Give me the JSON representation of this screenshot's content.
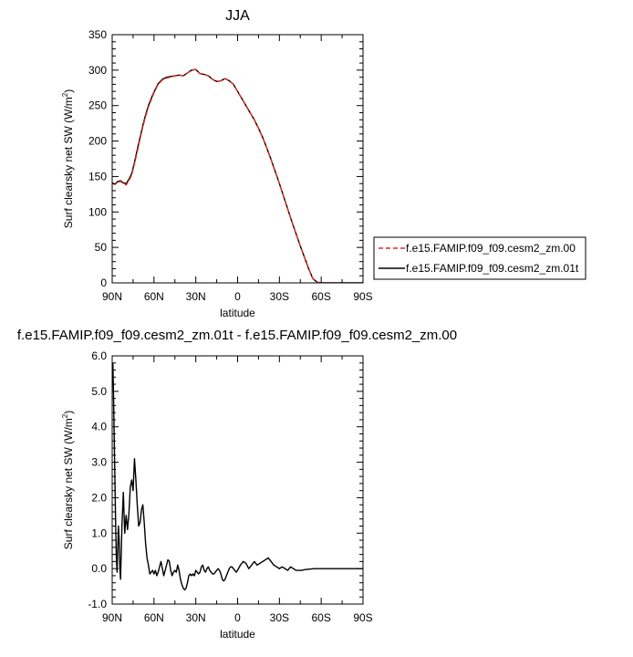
{
  "chart_data": [
    {
      "type": "line",
      "title": "JJA",
      "xlabel": "latitude",
      "ylabel": "Surf clearsky net SW (W/m",
      "ylabel_sup": "2",
      "ylabel_close": ")",
      "xlim": [
        90,
        -90
      ],
      "ylim": [
        0,
        350
      ],
      "xticks": [
        90,
        60,
        30,
        0,
        -30,
        -60,
        -90
      ],
      "xtick_labels": [
        "90N",
        "60N",
        "30N",
        "0",
        "30S",
        "60S",
        "90S"
      ],
      "yticks": [
        0,
        50,
        100,
        150,
        200,
        250,
        300,
        350
      ],
      "ytick_labels": [
        "0",
        "50",
        "100",
        "150",
        "200",
        "250",
        "300",
        "350"
      ],
      "legend_position": "right",
      "series": [
        {
          "name": "f.e15.FAMIP.f09_f09.cesm2_zm.00",
          "color": "#e8281e",
          "style": "dashed",
          "x": [
            90,
            88,
            86,
            84,
            82,
            80,
            78,
            76,
            74,
            72,
            70,
            68,
            66,
            64,
            62,
            60,
            57,
            54,
            51,
            48,
            45,
            42,
            39,
            36,
            33,
            30,
            27,
            24,
            21,
            18,
            15,
            12,
            9,
            6,
            3,
            0,
            -3,
            -6,
            -9,
            -12,
            -15,
            -18,
            -21,
            -24,
            -27,
            -30,
            -33,
            -36,
            -39,
            -42,
            -45,
            -48,
            -51,
            -54,
            -57,
            -60,
            -62,
            -64,
            -66,
            -68,
            -70,
            -75,
            -80,
            -85,
            -90
          ],
          "y": [
            140,
            139,
            142,
            143,
            140,
            138,
            144,
            152,
            168,
            185,
            203,
            220,
            235,
            248,
            258,
            268,
            280,
            286,
            289,
            290,
            292,
            293,
            292,
            296,
            300,
            301,
            295,
            294,
            292,
            287,
            284,
            285,
            288,
            285,
            280,
            270,
            260,
            250,
            240,
            230,
            218,
            205,
            190,
            174,
            157,
            140,
            122,
            104,
            86,
            69,
            52,
            36,
            20,
            6,
            1,
            0,
            0,
            0,
            0,
            0,
            0,
            0,
            0,
            0,
            0
          ]
        },
        {
          "name": "f.e15.FAMIP.f09_f09.cesm2_zm.01t",
          "color": "#000000",
          "style": "solid",
          "x": [
            90,
            88,
            86,
            84,
            82,
            80,
            78,
            76,
            74,
            72,
            70,
            68,
            66,
            64,
            62,
            60,
            57,
            54,
            51,
            48,
            45,
            42,
            39,
            36,
            33,
            30,
            27,
            24,
            21,
            18,
            15,
            12,
            9,
            6,
            3,
            0,
            -3,
            -6,
            -9,
            -12,
            -15,
            -18,
            -21,
            -24,
            -27,
            -30,
            -33,
            -36,
            -39,
            -42,
            -45,
            -48,
            -51,
            -54,
            -57,
            -60,
            -62,
            -64,
            -66,
            -68,
            -70,
            -75,
            -80,
            -85,
            -90
          ],
          "y": [
            141,
            139,
            143,
            144,
            141,
            140,
            146,
            154,
            170,
            188,
            205,
            222,
            237,
            250,
            260,
            269,
            281,
            287,
            290,
            291,
            292,
            293,
            292,
            296,
            300,
            301,
            295,
            294,
            292,
            287,
            284,
            285,
            288,
            285,
            280,
            270,
            260,
            250,
            240,
            230,
            218,
            205,
            190,
            174,
            157,
            140,
            122,
            104,
            86,
            69,
            52,
            36,
            20,
            6,
            1,
            0,
            0,
            0,
            0,
            0,
            0,
            0,
            0,
            0,
            0
          ]
        }
      ]
    },
    {
      "type": "line",
      "title": "f.e15.FAMIP.f09_f09.cesm2_zm.01t - f.e15.FAMIP.f09_f09.cesm2_zm.00",
      "xlabel": "latitude",
      "ylabel": "Surf clearsky net SW (W/m",
      "ylabel_sup": "2",
      "ylabel_close": ")",
      "xlim": [
        90,
        -90
      ],
      "ylim": [
        -1.0,
        6.0
      ],
      "xticks": [
        90,
        60,
        30,
        0,
        -30,
        -60,
        -90
      ],
      "xtick_labels": [
        "90N",
        "60N",
        "30N",
        "0",
        "30S",
        "60S",
        "90S"
      ],
      "yticks": [
        -1.0,
        0.0,
        1.0,
        2.0,
        3.0,
        4.0,
        5.0,
        6.0
      ],
      "ytick_labels": [
        "-1.0",
        "0.0",
        "1.0",
        "2.0",
        "3.0",
        "4.0",
        "5.0",
        "6.0"
      ],
      "series": [
        {
          "color": "#000000",
          "style": "solid",
          "x": [
            89.5,
            89,
            88.5,
            88,
            87.5,
            87,
            86.5,
            86,
            85.5,
            85,
            84.5,
            84,
            83,
            82,
            81,
            80,
            79,
            78,
            77,
            76,
            75,
            74,
            73,
            72,
            71,
            70,
            69,
            68,
            67,
            66,
            65,
            64,
            63,
            62,
            61,
            60,
            59,
            58,
            57,
            56,
            55,
            54,
            53,
            52,
            51,
            50,
            49,
            48,
            47,
            46,
            45,
            44,
            43,
            42,
            41,
            40,
            39,
            38,
            37,
            36,
            35,
            34,
            33,
            32,
            31,
            30,
            29,
            28,
            27,
            26,
            25,
            24,
            23,
            22,
            21,
            20,
            19,
            18,
            17,
            16,
            15,
            14,
            13,
            12,
            11,
            10,
            9,
            8,
            7,
            6,
            5,
            4,
            3,
            2,
            1,
            0,
            -2,
            -4,
            -6,
            -8,
            -10,
            -12,
            -14,
            -16,
            -18,
            -20,
            -22,
            -24,
            -26,
            -28,
            -30,
            -32,
            -34,
            -36,
            -38,
            -40,
            -42,
            -44,
            -46,
            -48,
            -50,
            -55,
            -60,
            -65,
            -70,
            -75,
            -80,
            -85,
            -90
          ],
          "y": [
            5.8,
            4.8,
            3.6,
            2.4,
            1.2,
            0.3,
            -0.1,
            0.6,
            1.2,
            0.8,
            0.0,
            -0.3,
            1.2,
            2.15,
            1.0,
            1.5,
            1.1,
            1.55,
            2.3,
            2.5,
            2.2,
            3.1,
            2.5,
            1.8,
            1.2,
            1.3,
            1.65,
            1.8,
            1.3,
            0.7,
            0.3,
            0.1,
            -0.15,
            -0.1,
            -0.05,
            -0.15,
            -0.05,
            -0.2,
            -0.1,
            0.05,
            0.2,
            0.0,
            -0.2,
            -0.05,
            0.1,
            0.25,
            0.2,
            -0.05,
            -0.2,
            -0.1,
            -0.05,
            -0.1,
            0.1,
            -0.05,
            -0.3,
            -0.45,
            -0.55,
            -0.6,
            -0.55,
            -0.4,
            -0.2,
            -0.15,
            -0.2,
            -0.15,
            -0.2,
            -0.05,
            -0.1,
            -0.15,
            -0.1,
            0.05,
            0.1,
            -0.05,
            -0.1,
            0.0,
            0.05,
            -0.05,
            -0.1,
            -0.15,
            -0.15,
            -0.1,
            -0.05,
            0.0,
            -0.05,
            -0.15,
            -0.3,
            -0.35,
            -0.3,
            -0.2,
            -0.1,
            0.0,
            0.05,
            0.05,
            0.0,
            -0.05,
            -0.1,
            -0.05,
            0.1,
            0.2,
            0.15,
            0.0,
            0.1,
            0.2,
            0.1,
            0.15,
            0.2,
            0.25,
            0.3,
            0.2,
            0.1,
            0.05,
            0.0,
            0.05,
            0.0,
            -0.05,
            0.05,
            0.0,
            -0.05,
            -0.05,
            -0.05,
            -0.03,
            -0.02,
            0.0,
            0.0,
            0.0,
            0.0,
            0.0,
            0.0,
            0.0,
            0.0
          ]
        }
      ]
    }
  ]
}
